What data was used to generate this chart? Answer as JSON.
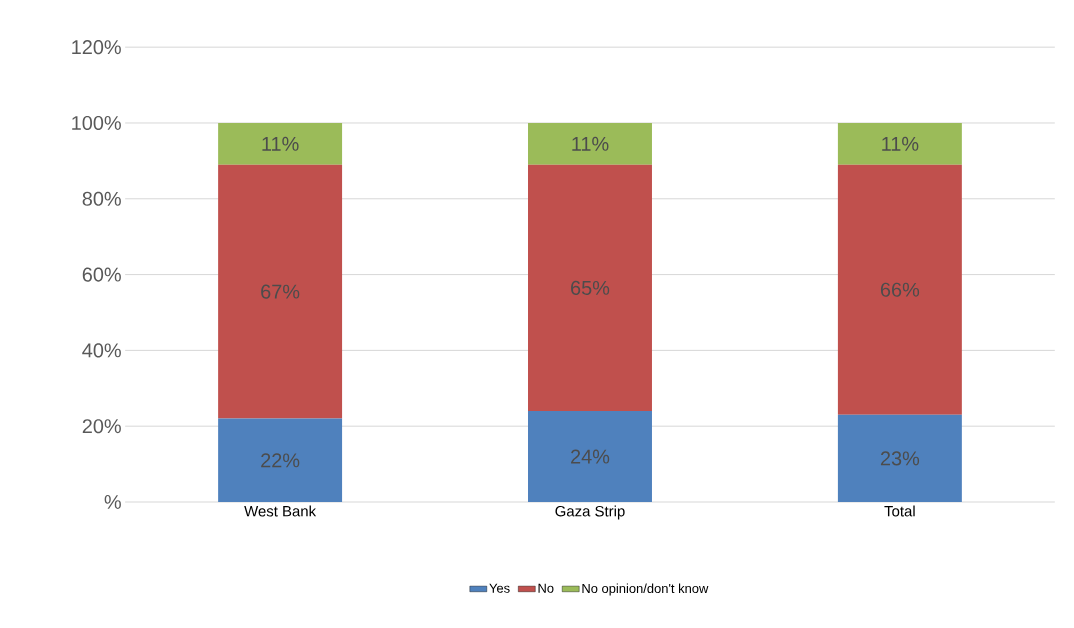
{
  "chart_data": {
    "type": "bar",
    "stacked": true,
    "categories": [
      "West Bank",
      "Gaza Strip",
      "Total"
    ],
    "series": [
      {
        "name": "Yes",
        "color": "#4f81bd",
        "values": [
          22,
          24,
          23
        ],
        "value_labels": [
          "22%",
          "24%",
          "23%"
        ]
      },
      {
        "name": "No",
        "color": "#c0504d",
        "values": [
          67,
          65,
          66
        ],
        "value_labels": [
          "67%",
          "65%",
          "66%"
        ]
      },
      {
        "name": "No opinion/don't know",
        "color": "#9bbb59",
        "values": [
          11,
          11,
          11
        ],
        "value_labels": [
          "11%",
          "11%",
          "11%"
        ]
      }
    ],
    "ylim": [
      0,
      120
    ],
    "yticks": [
      {
        "value": 0,
        "label": "%"
      },
      {
        "value": 20,
        "label": "20%"
      },
      {
        "value": 40,
        "label": "40%"
      },
      {
        "value": 60,
        "label": "60%"
      },
      {
        "value": 80,
        "label": "80%"
      },
      {
        "value": 100,
        "label": "100%"
      },
      {
        "value": 120,
        "label": "120%"
      }
    ],
    "grid": "y",
    "legend": "bottom"
  }
}
